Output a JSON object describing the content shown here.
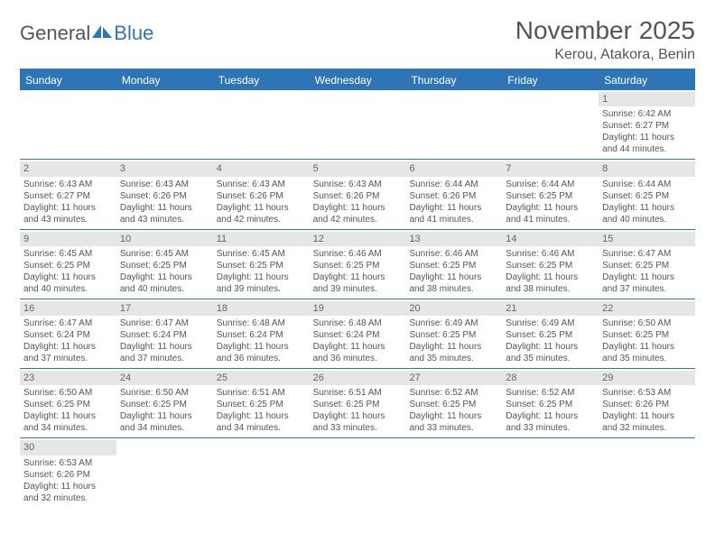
{
  "logo": {
    "text1": "General",
    "text2": "Blue"
  },
  "title": "November 2025",
  "location": "Kerou, Atakora, Benin",
  "colors": {
    "header_bg": "#2e75b6",
    "header_text": "#ffffff",
    "daynum_bg": "#e6e6e6",
    "text": "#555555",
    "divider": "#2e75b6"
  },
  "days_of_week": [
    "Sunday",
    "Monday",
    "Tuesday",
    "Wednesday",
    "Thursday",
    "Friday",
    "Saturday"
  ],
  "weeks": [
    [
      null,
      null,
      null,
      null,
      null,
      null,
      {
        "n": "1",
        "sr": "Sunrise: 6:42 AM",
        "ss": "Sunset: 6:27 PM",
        "d1": "Daylight: 11 hours",
        "d2": "and 44 minutes."
      }
    ],
    [
      {
        "n": "2",
        "sr": "Sunrise: 6:43 AM",
        "ss": "Sunset: 6:27 PM",
        "d1": "Daylight: 11 hours",
        "d2": "and 43 minutes."
      },
      {
        "n": "3",
        "sr": "Sunrise: 6:43 AM",
        "ss": "Sunset: 6:26 PM",
        "d1": "Daylight: 11 hours",
        "d2": "and 43 minutes."
      },
      {
        "n": "4",
        "sr": "Sunrise: 6:43 AM",
        "ss": "Sunset: 6:26 PM",
        "d1": "Daylight: 11 hours",
        "d2": "and 42 minutes."
      },
      {
        "n": "5",
        "sr": "Sunrise: 6:43 AM",
        "ss": "Sunset: 6:26 PM",
        "d1": "Daylight: 11 hours",
        "d2": "and 42 minutes."
      },
      {
        "n": "6",
        "sr": "Sunrise: 6:44 AM",
        "ss": "Sunset: 6:26 PM",
        "d1": "Daylight: 11 hours",
        "d2": "and 41 minutes."
      },
      {
        "n": "7",
        "sr": "Sunrise: 6:44 AM",
        "ss": "Sunset: 6:25 PM",
        "d1": "Daylight: 11 hours",
        "d2": "and 41 minutes."
      },
      {
        "n": "8",
        "sr": "Sunrise: 6:44 AM",
        "ss": "Sunset: 6:25 PM",
        "d1": "Daylight: 11 hours",
        "d2": "and 40 minutes."
      }
    ],
    [
      {
        "n": "9",
        "sr": "Sunrise: 6:45 AM",
        "ss": "Sunset: 6:25 PM",
        "d1": "Daylight: 11 hours",
        "d2": "and 40 minutes."
      },
      {
        "n": "10",
        "sr": "Sunrise: 6:45 AM",
        "ss": "Sunset: 6:25 PM",
        "d1": "Daylight: 11 hours",
        "d2": "and 40 minutes."
      },
      {
        "n": "11",
        "sr": "Sunrise: 6:45 AM",
        "ss": "Sunset: 6:25 PM",
        "d1": "Daylight: 11 hours",
        "d2": "and 39 minutes."
      },
      {
        "n": "12",
        "sr": "Sunrise: 6:46 AM",
        "ss": "Sunset: 6:25 PM",
        "d1": "Daylight: 11 hours",
        "d2": "and 39 minutes."
      },
      {
        "n": "13",
        "sr": "Sunrise: 6:46 AM",
        "ss": "Sunset: 6:25 PM",
        "d1": "Daylight: 11 hours",
        "d2": "and 38 minutes."
      },
      {
        "n": "14",
        "sr": "Sunrise: 6:46 AM",
        "ss": "Sunset: 6:25 PM",
        "d1": "Daylight: 11 hours",
        "d2": "and 38 minutes."
      },
      {
        "n": "15",
        "sr": "Sunrise: 6:47 AM",
        "ss": "Sunset: 6:25 PM",
        "d1": "Daylight: 11 hours",
        "d2": "and 37 minutes."
      }
    ],
    [
      {
        "n": "16",
        "sr": "Sunrise: 6:47 AM",
        "ss": "Sunset: 6:24 PM",
        "d1": "Daylight: 11 hours",
        "d2": "and 37 minutes."
      },
      {
        "n": "17",
        "sr": "Sunrise: 6:47 AM",
        "ss": "Sunset: 6:24 PM",
        "d1": "Daylight: 11 hours",
        "d2": "and 37 minutes."
      },
      {
        "n": "18",
        "sr": "Sunrise: 6:48 AM",
        "ss": "Sunset: 6:24 PM",
        "d1": "Daylight: 11 hours",
        "d2": "and 36 minutes."
      },
      {
        "n": "19",
        "sr": "Sunrise: 6:48 AM",
        "ss": "Sunset: 6:24 PM",
        "d1": "Daylight: 11 hours",
        "d2": "and 36 minutes."
      },
      {
        "n": "20",
        "sr": "Sunrise: 6:49 AM",
        "ss": "Sunset: 6:25 PM",
        "d1": "Daylight: 11 hours",
        "d2": "and 35 minutes."
      },
      {
        "n": "21",
        "sr": "Sunrise: 6:49 AM",
        "ss": "Sunset: 6:25 PM",
        "d1": "Daylight: 11 hours",
        "d2": "and 35 minutes."
      },
      {
        "n": "22",
        "sr": "Sunrise: 6:50 AM",
        "ss": "Sunset: 6:25 PM",
        "d1": "Daylight: 11 hours",
        "d2": "and 35 minutes."
      }
    ],
    [
      {
        "n": "23",
        "sr": "Sunrise: 6:50 AM",
        "ss": "Sunset: 6:25 PM",
        "d1": "Daylight: 11 hours",
        "d2": "and 34 minutes."
      },
      {
        "n": "24",
        "sr": "Sunrise: 6:50 AM",
        "ss": "Sunset: 6:25 PM",
        "d1": "Daylight: 11 hours",
        "d2": "and 34 minutes."
      },
      {
        "n": "25",
        "sr": "Sunrise: 6:51 AM",
        "ss": "Sunset: 6:25 PM",
        "d1": "Daylight: 11 hours",
        "d2": "and 34 minutes."
      },
      {
        "n": "26",
        "sr": "Sunrise: 6:51 AM",
        "ss": "Sunset: 6:25 PM",
        "d1": "Daylight: 11 hours",
        "d2": "and 33 minutes."
      },
      {
        "n": "27",
        "sr": "Sunrise: 6:52 AM",
        "ss": "Sunset: 6:25 PM",
        "d1": "Daylight: 11 hours",
        "d2": "and 33 minutes."
      },
      {
        "n": "28",
        "sr": "Sunrise: 6:52 AM",
        "ss": "Sunset: 6:25 PM",
        "d1": "Daylight: 11 hours",
        "d2": "and 33 minutes."
      },
      {
        "n": "29",
        "sr": "Sunrise: 6:53 AM",
        "ss": "Sunset: 6:26 PM",
        "d1": "Daylight: 11 hours",
        "d2": "and 32 minutes."
      }
    ],
    [
      {
        "n": "30",
        "sr": "Sunrise: 6:53 AM",
        "ss": "Sunset: 6:26 PM",
        "d1": "Daylight: 11 hours",
        "d2": "and 32 minutes."
      },
      null,
      null,
      null,
      null,
      null,
      null
    ]
  ]
}
